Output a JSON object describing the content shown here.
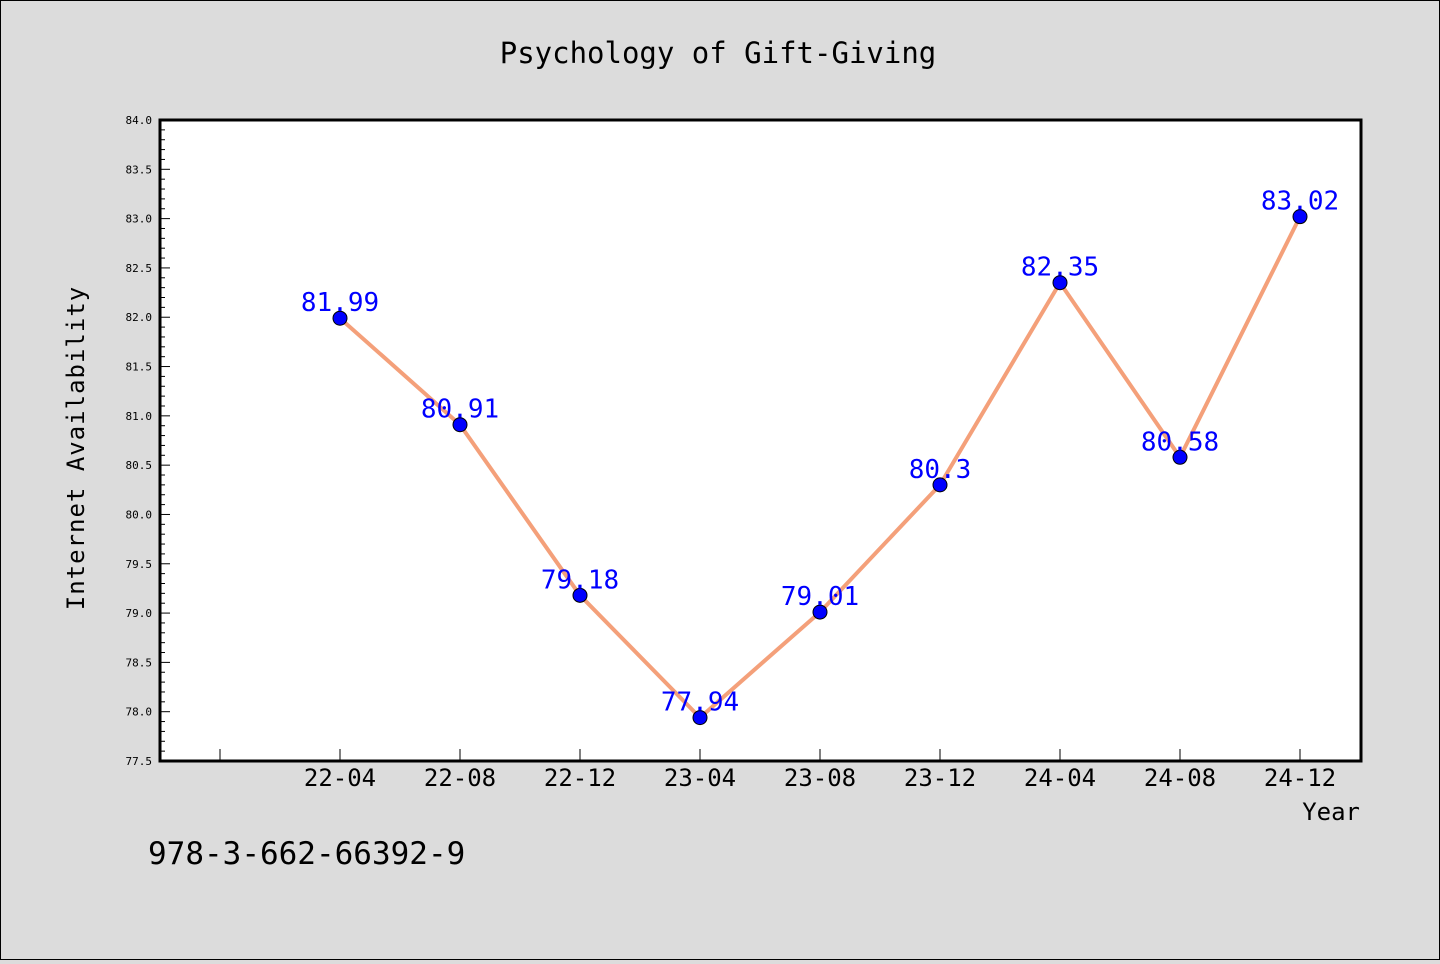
{
  "chart_data": {
    "type": "line",
    "title": "Psychology of Gift-Giving",
    "xlabel": "Year",
    "ylabel": "Internet Availability",
    "categories": [
      "22-04",
      "22-08",
      "22-12",
      "23-04",
      "23-08",
      "23-12",
      "24-04",
      "24-08",
      "24-12"
    ],
    "series": [
      {
        "values": [
          81.99,
          80.91,
          79.18,
          77.94,
          79.01,
          80.3,
          82.35,
          80.58,
          83.02
        ],
        "labels": [
          "81.99",
          "80.91",
          "79.18",
          "77.94",
          "79.01",
          "80.3",
          "82.35",
          "80.58",
          "83.02"
        ],
        "line_color": "#f4a07a",
        "marker_color": "#0000ff",
        "label_color": "#0000ff"
      }
    ],
    "ylim": [
      77.5,
      84.0
    ],
    "yticks": [
      "77.5",
      "78.0",
      "78.5",
      "79.0",
      "79.5",
      "80.0",
      "80.5",
      "81.0",
      "81.5",
      "82.0",
      "82.5",
      "83.0",
      "83.5",
      "84.0"
    ],
    "grid": false,
    "legend": "none"
  },
  "footer_text": "978-3-662-66392-9",
  "colors": {
    "background": "#dcdcdc",
    "plot_background": "#ffffff",
    "axis": "#000000"
  }
}
